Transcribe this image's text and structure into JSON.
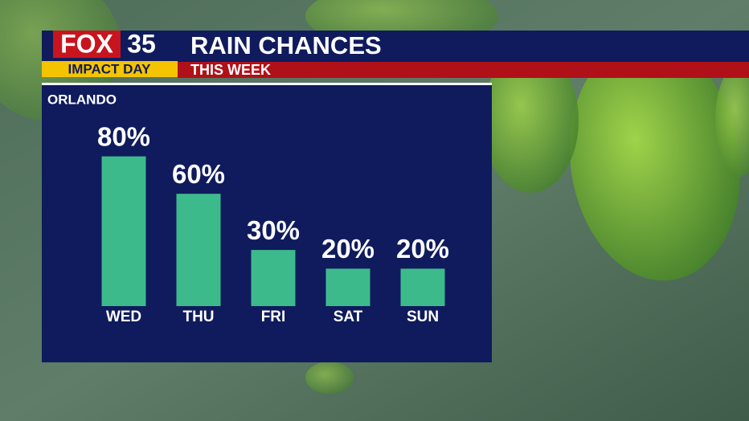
{
  "branding": {
    "name": "FOX",
    "number": "35",
    "tag": "IMPACT DAY"
  },
  "chart_data": {
    "type": "bar",
    "title": "RAIN CHANCES",
    "subtitle": "THIS WEEK",
    "annotation": "ORLANDO",
    "categories": [
      "WED",
      "THU",
      "FRI",
      "SAT",
      "SUN"
    ],
    "values": [
      80,
      60,
      30,
      20,
      20
    ],
    "value_labels": [
      "80%",
      "60%",
      "30%",
      "20%",
      "20%"
    ],
    "color": "#3dba8c"
  }
}
